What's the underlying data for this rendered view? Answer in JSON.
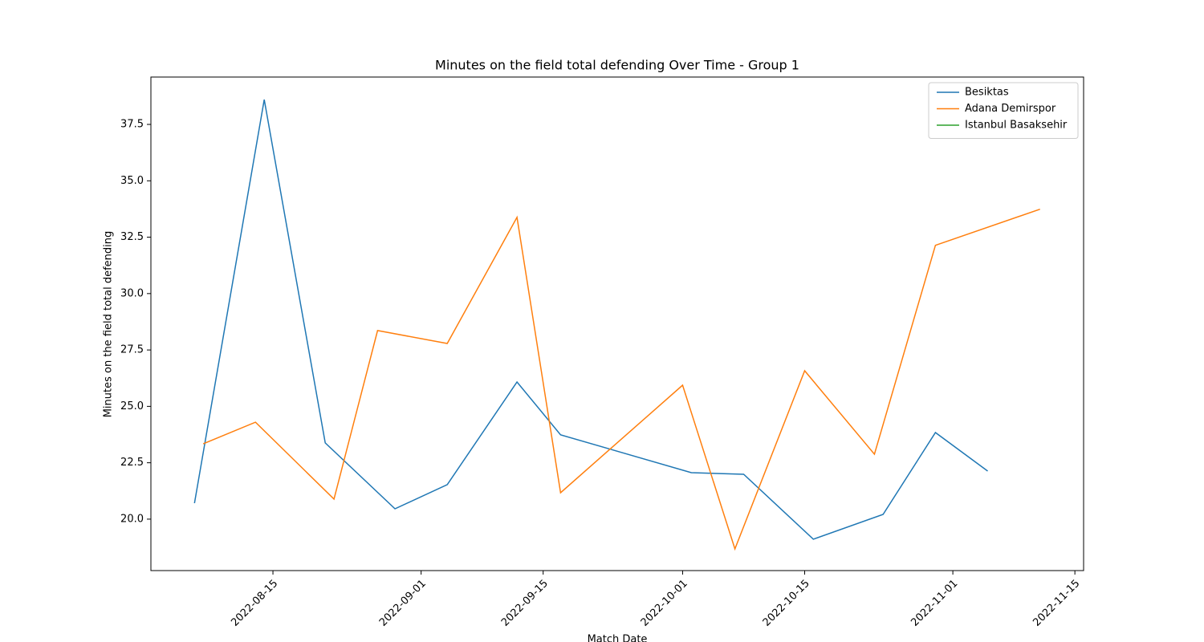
{
  "chart_data": {
    "type": "line",
    "title": "Minutes on the field total defending Over Time - Group 1",
    "xlabel": "Match Date",
    "ylabel": "Minutes on the field total defending",
    "xlim": [
      "2022-08-01",
      "2022-11-16"
    ],
    "xticks": [
      "2022-08-15",
      "2022-09-01",
      "2022-09-15",
      "2022-10-01",
      "2022-10-15",
      "2022-11-01",
      "2022-11-15"
    ],
    "ylim": [
      17.72,
      39.6
    ],
    "yticks": [
      {
        "value": 20,
        "label": "20.0"
      },
      22.5,
      {
        "value": 25,
        "label": "25.0"
      },
      27.5,
      {
        "value": 30,
        "label": "30.0"
      },
      32.5,
      {
        "value": 35,
        "label": "35.0"
      },
      37.5
    ],
    "legend": "upper right",
    "series": [
      {
        "name": "Besiktas",
        "color": "#1f77b4",
        "x": [
          "2022-08-06",
          "2022-08-14",
          "2022-08-21",
          "2022-08-29",
          "2022-09-04",
          "2022-09-12",
          "2022-09-17",
          "2022-10-02",
          "2022-10-08",
          "2022-10-16",
          "2022-10-24",
          "2022-10-30",
          "2022-11-05"
        ],
        "values": [
          20.71,
          38.6,
          23.38,
          20.46,
          21.53,
          26.08,
          23.74,
          22.06,
          21.99,
          19.11,
          20.21,
          23.84,
          22.13
        ]
      },
      {
        "name": "Adana Demirspor",
        "color": "#ff7f0e",
        "x": [
          "2022-08-07",
          "2022-08-13",
          "2022-08-22",
          "2022-08-27",
          "2022-09-04",
          "2022-09-12",
          "2022-09-17",
          "2022-10-01",
          "2022-10-07",
          "2022-10-15",
          "2022-10-23",
          "2022-10-30",
          "2022-11-11"
        ],
        "values": [
          23.34,
          24.3,
          20.89,
          28.36,
          27.79,
          33.38,
          21.17,
          25.94,
          18.68,
          26.58,
          22.88,
          32.14,
          33.74
        ]
      },
      {
        "name": "Istanbul Basaksehir",
        "color": "#2ca02c",
        "x": [],
        "values": []
      }
    ]
  }
}
